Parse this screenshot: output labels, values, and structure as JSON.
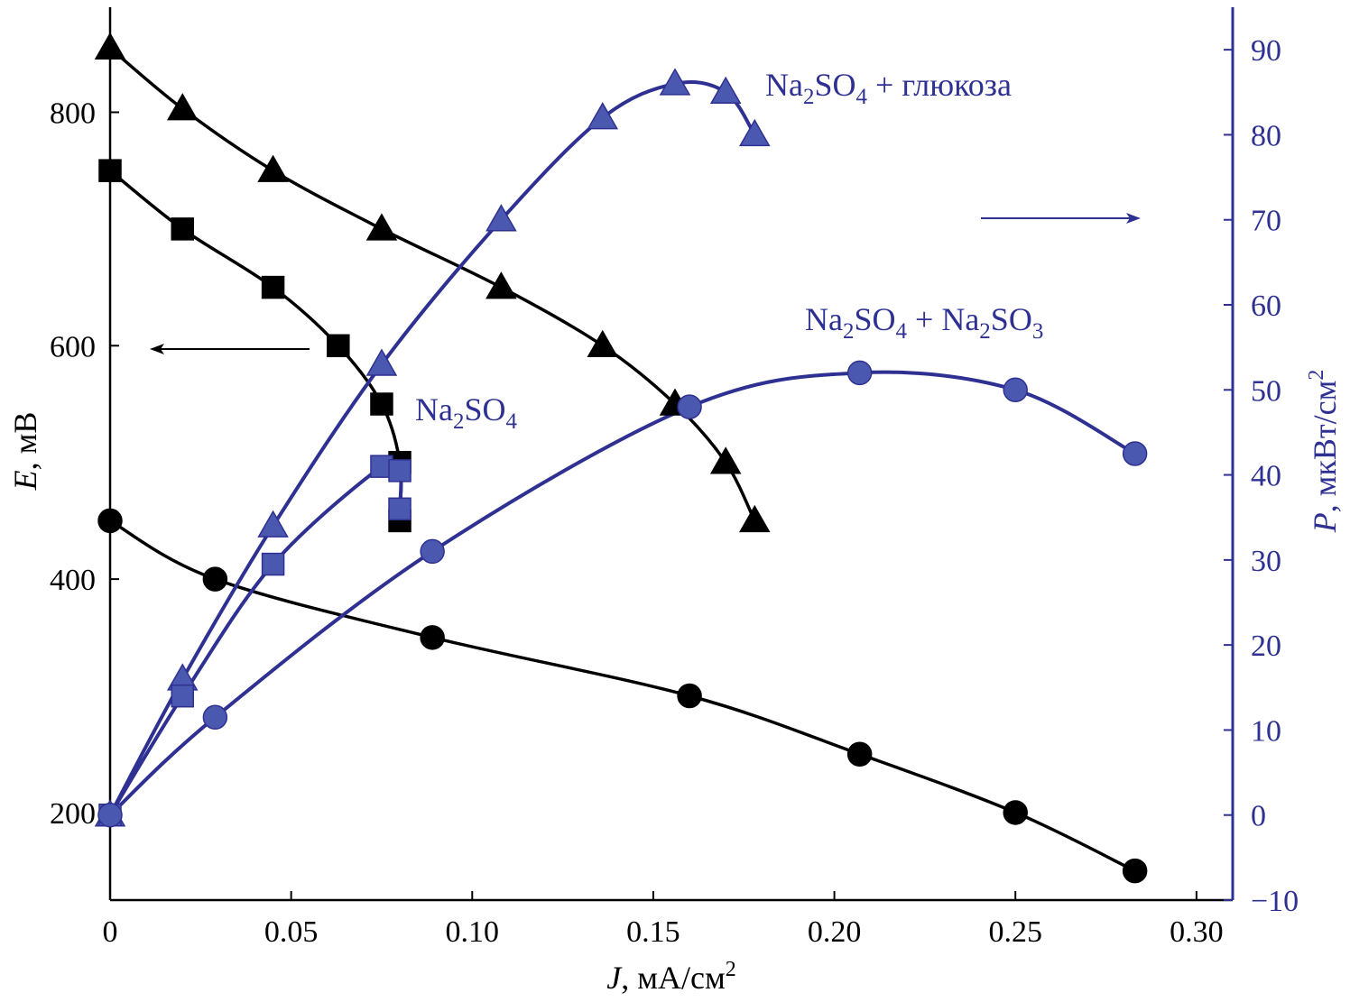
{
  "chart_data": {
    "type": "line",
    "colors": {
      "left": "#000000",
      "right": "#2e3192",
      "marker_right": "#4b58b0"
    },
    "x_axis": {
      "label_italic": "J",
      "label_rest": ", мА/см",
      "label_sup": "2",
      "range": [
        0,
        0.31
      ],
      "ticks": [
        0,
        0.05,
        0.1,
        0.15,
        0.2,
        0.25,
        0.3
      ],
      "tick_labels": [
        "0",
        "0.05",
        "0.10",
        "0.15",
        "0.20",
        "0.25",
        "0.30"
      ]
    },
    "y_left": {
      "label_italic": "E",
      "label_rest": ", мВ",
      "range": [
        125,
        890
      ],
      "ticks": [
        200,
        400,
        600,
        800
      ],
      "tick_labels": [
        "200",
        "400",
        "600",
        "800"
      ]
    },
    "y_right": {
      "label_italic": "P",
      "label_rest": ", мкВт/см",
      "label_sup": "2",
      "range": [
        -10,
        95
      ],
      "ticks": [
        -10,
        0,
        10,
        20,
        30,
        40,
        50,
        60,
        70,
        80,
        90
      ],
      "tick_labels": [
        "−10",
        "0",
        "10",
        "20",
        "30",
        "40",
        "50",
        "60",
        "70",
        "80",
        "90"
      ]
    },
    "series": [
      {
        "name": "E Na2SO4 + глюкоза",
        "axis": "left",
        "marker": "triangle",
        "x": [
          0,
          0.02,
          0.045,
          0.075,
          0.108,
          0.136,
          0.156,
          0.17,
          0.178
        ],
        "y": [
          855,
          803,
          750,
          700,
          650,
          600,
          550,
          500,
          450
        ]
      },
      {
        "name": "E Na2SO4",
        "axis": "left",
        "marker": "square",
        "x": [
          0,
          0.02,
          0.045,
          0.063,
          0.075,
          0.08,
          0.08
        ],
        "y": [
          750,
          700,
          650,
          600,
          550,
          500,
          450
        ]
      },
      {
        "name": "E Na2SO4 + Na2SO3",
        "axis": "left",
        "marker": "circle",
        "x": [
          0,
          0.029,
          0.089,
          0.16,
          0.207,
          0.25,
          0.283
        ],
        "y": [
          450,
          400,
          350,
          300,
          250,
          200,
          150
        ]
      },
      {
        "name": "P Na2SO4 + глюкоза",
        "axis": "right",
        "marker": "triangle",
        "x": [
          0,
          0.02,
          0.045,
          0.075,
          0.108,
          0.136,
          0.156,
          0.17,
          0.178
        ],
        "y": [
          0,
          16,
          34,
          53,
          70,
          82,
          86,
          85,
          80
        ]
      },
      {
        "name": "P Na2SO4",
        "axis": "right",
        "marker": "square",
        "x": [
          0,
          0.02,
          0.045,
          0.075,
          0.08,
          0.08
        ],
        "y": [
          0,
          14,
          29.5,
          41,
          40.5,
          36
        ]
      },
      {
        "name": "P Na2SO4 + Na2SO3",
        "axis": "right",
        "marker": "circle",
        "x": [
          0,
          0.029,
          0.089,
          0.16,
          0.207,
          0.25,
          0.283
        ],
        "y": [
          0,
          11.5,
          31,
          48,
          52,
          50,
          42.5
        ]
      }
    ],
    "annotations": {
      "glucose": {
        "p1": "Na",
        "s1": "2",
        "p2": "SO",
        "s2": "4",
        "p3": " + глюкоза"
      },
      "sulfite": {
        "p1": "Na",
        "s1": "2",
        "p2": "SO",
        "s2": "4",
        "p3": " + Na",
        "s3": "2",
        "p4": "SO",
        "s4": "3"
      },
      "sulfate": {
        "p1": "Na",
        "s1": "2",
        "p2": "SO",
        "s2": "4"
      }
    }
  }
}
